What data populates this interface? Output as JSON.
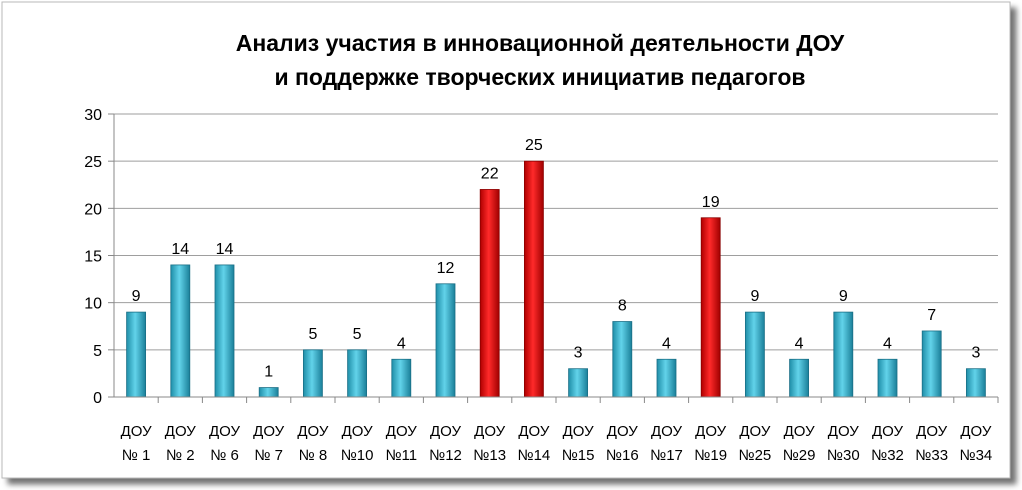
{
  "chart_data": {
    "type": "bar",
    "title": [
      "Анализ участия в инновационной деятельности ДОУ",
      "и поддержке творческих инициатив педагогов"
    ],
    "categories": [
      [
        "ДОУ",
        "№ 1"
      ],
      [
        "ДОУ",
        "№ 2"
      ],
      [
        "ДОУ",
        "№ 6"
      ],
      [
        "ДОУ",
        "№ 7"
      ],
      [
        "ДОУ",
        "№ 8"
      ],
      [
        "ДОУ",
        "№10"
      ],
      [
        "ДОУ",
        "№11"
      ],
      [
        "ДОУ",
        "№12"
      ],
      [
        "ДОУ",
        "№13"
      ],
      [
        "ДОУ",
        "№14"
      ],
      [
        "ДОУ",
        "№15"
      ],
      [
        "ДОУ",
        "№16"
      ],
      [
        "ДОУ",
        "№17"
      ],
      [
        "ДОУ",
        "№19"
      ],
      [
        "ДОУ",
        "№25"
      ],
      [
        "ДОУ",
        "№29"
      ],
      [
        "ДОУ",
        "№30"
      ],
      [
        "ДОУ",
        "№32"
      ],
      [
        "ДОУ",
        "№33"
      ],
      [
        "ДОУ",
        "№34"
      ]
    ],
    "values": [
      9,
      14,
      14,
      1,
      5,
      5,
      4,
      12,
      22,
      25,
      3,
      8,
      4,
      19,
      9,
      4,
      9,
      4,
      7,
      3
    ],
    "highlighted": [
      false,
      false,
      false,
      false,
      false,
      false,
      false,
      false,
      true,
      true,
      false,
      false,
      false,
      true,
      false,
      false,
      false,
      false,
      false,
      false
    ],
    "ylim": [
      0,
      30
    ],
    "yticks": [
      0,
      5,
      10,
      15,
      20,
      25,
      30
    ],
    "grid": true,
    "xlabel": "",
    "ylabel": "",
    "colors": {
      "default_bar": "#3bb5d0",
      "highlight_bar": "#ee1111",
      "grid": "#9e9e9e"
    }
  }
}
